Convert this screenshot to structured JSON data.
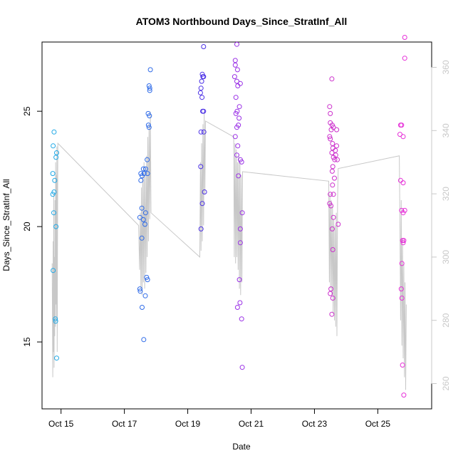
{
  "chart_data": {
    "type": "scatter",
    "title": "ATOM3 Northbound Days_Since_StratInf_All",
    "xlabel": "Date",
    "ylabel": "Days_Since_StratInf_All",
    "x_unit": "days (Oct 1 = 1)",
    "xlim": [
      14.4,
      26.7
    ],
    "ylim": [
      12.1,
      28.0
    ],
    "y_ticks": [
      15,
      20,
      25
    ],
    "x_ticks": [
      {
        "value": 15,
        "label": "Oct 15"
      },
      {
        "value": 17,
        "label": "Oct 17"
      },
      {
        "value": 19,
        "label": "Oct 19"
      },
      {
        "value": 21,
        "label": "Oct 21"
      },
      {
        "value": 23,
        "label": "Oct 23"
      },
      {
        "value": 25,
        "label": "Oct 25"
      }
    ],
    "right_axis": {
      "label": "",
      "ylim": [
        252,
        368
      ],
      "ticks": [
        260,
        280,
        300,
        320,
        340,
        360
      ],
      "color": "#c8c8c8"
    },
    "colors": {
      "flight1": "#1fa8e6",
      "flight2": "#2f6be8",
      "flight3": "#4b30e6",
      "flight4": "#9a30e6",
      "flight5": "#cc30cc",
      "flight6": "#e630d8",
      "line": "#c8c8c8"
    },
    "series": [
      {
        "name": "flight1",
        "color_key": "flight1",
        "points": [
          [
            14.78,
            24.1
          ],
          [
            14.75,
            23.5
          ],
          [
            14.86,
            23.2
          ],
          [
            14.84,
            23.0
          ],
          [
            14.74,
            22.3
          ],
          [
            14.8,
            22.0
          ],
          [
            14.78,
            21.5
          ],
          [
            14.74,
            21.4
          ],
          [
            14.77,
            20.6
          ],
          [
            14.84,
            20.0
          ],
          [
            14.75,
            18.1
          ],
          [
            14.82,
            16.0
          ],
          [
            14.83,
            15.9
          ],
          [
            14.86,
            14.3
          ]
        ]
      },
      {
        "name": "flight2",
        "color_key": "flight2",
        "points": [
          [
            17.82,
            26.8
          ],
          [
            17.78,
            26.1
          ],
          [
            17.8,
            26.0
          ],
          [
            17.8,
            25.9
          ],
          [
            17.75,
            24.9
          ],
          [
            17.79,
            24.8
          ],
          [
            17.76,
            24.4
          ],
          [
            17.78,
            24.3
          ],
          [
            17.72,
            22.9
          ],
          [
            17.67,
            22.5
          ],
          [
            17.6,
            22.5
          ],
          [
            17.52,
            22.3
          ],
          [
            17.62,
            22.3
          ],
          [
            17.73,
            22.3
          ],
          [
            17.56,
            22.2
          ],
          [
            17.52,
            22.0
          ],
          [
            17.55,
            20.8
          ],
          [
            17.67,
            20.6
          ],
          [
            17.49,
            20.4
          ],
          [
            17.6,
            20.3
          ],
          [
            17.65,
            20.1
          ],
          [
            17.55,
            19.5
          ],
          [
            17.7,
            17.8
          ],
          [
            17.73,
            17.7
          ],
          [
            17.49,
            17.3
          ],
          [
            17.5,
            17.2
          ],
          [
            17.66,
            17.0
          ],
          [
            17.56,
            16.5
          ],
          [
            17.61,
            15.1
          ]
        ]
      },
      {
        "name": "flight3",
        "color_key": "flight3",
        "points": [
          [
            19.5,
            27.8
          ],
          [
            19.46,
            26.6
          ],
          [
            19.5,
            26.5
          ],
          [
            19.48,
            26.5
          ],
          [
            19.44,
            26.3
          ],
          [
            19.42,
            26.0
          ],
          [
            19.45,
            25.6
          ],
          [
            19.4,
            25.8
          ],
          [
            19.47,
            25.0
          ],
          [
            19.5,
            25.0
          ],
          [
            19.42,
            24.1
          ],
          [
            19.51,
            24.1
          ],
          [
            19.41,
            22.6
          ],
          [
            19.53,
            21.5
          ],
          [
            19.46,
            21.0
          ],
          [
            19.42,
            19.9
          ]
        ]
      },
      {
        "name": "flight4",
        "color_key": "flight4",
        "points": [
          [
            20.55,
            27.9
          ],
          [
            20.5,
            27.2
          ],
          [
            20.5,
            27.0
          ],
          [
            20.57,
            26.8
          ],
          [
            20.48,
            26.5
          ],
          [
            20.55,
            26.3
          ],
          [
            20.66,
            26.2
          ],
          [
            20.58,
            26.1
          ],
          [
            20.52,
            25.6
          ],
          [
            20.63,
            25.2
          ],
          [
            20.56,
            25.0
          ],
          [
            20.52,
            24.9
          ],
          [
            20.62,
            24.7
          ],
          [
            20.6,
            24.4
          ],
          [
            20.55,
            24.3
          ],
          [
            20.5,
            23.9
          ],
          [
            20.58,
            23.5
          ],
          [
            20.55,
            23.1
          ],
          [
            20.66,
            22.9
          ],
          [
            20.7,
            22.8
          ],
          [
            20.6,
            22.2
          ],
          [
            20.72,
            20.6
          ],
          [
            20.66,
            19.9
          ],
          [
            20.66,
            19.3
          ],
          [
            20.63,
            17.7
          ],
          [
            20.65,
            16.7
          ],
          [
            20.57,
            16.5
          ],
          [
            20.7,
            16.0
          ],
          [
            20.72,
            13.9
          ]
        ]
      },
      {
        "name": "flight5",
        "color_key": "flight5",
        "points": [
          [
            23.55,
            26.4
          ],
          [
            23.48,
            25.2
          ],
          [
            23.5,
            24.9
          ],
          [
            23.5,
            24.5
          ],
          [
            23.56,
            24.4
          ],
          [
            23.6,
            24.3
          ],
          [
            23.53,
            24.2
          ],
          [
            23.7,
            24.2
          ],
          [
            23.48,
            23.9
          ],
          [
            23.5,
            23.8
          ],
          [
            23.57,
            23.6
          ],
          [
            23.7,
            23.5
          ],
          [
            23.58,
            23.4
          ],
          [
            23.66,
            23.3
          ],
          [
            23.55,
            23.2
          ],
          [
            23.67,
            23.1
          ],
          [
            23.6,
            23.0
          ],
          [
            23.72,
            22.9
          ],
          [
            23.64,
            22.9
          ],
          [
            23.58,
            22.6
          ],
          [
            23.56,
            22.4
          ],
          [
            23.63,
            22.1
          ],
          [
            23.57,
            21.8
          ],
          [
            23.5,
            21.4
          ],
          [
            23.6,
            21.4
          ],
          [
            23.48,
            21.0
          ],
          [
            23.52,
            20.9
          ],
          [
            23.6,
            20.4
          ],
          [
            23.75,
            20.1
          ],
          [
            23.56,
            19.9
          ],
          [
            23.58,
            19.0
          ],
          [
            23.52,
            17.3
          ],
          [
            23.5,
            17.1
          ],
          [
            23.58,
            16.9
          ],
          [
            23.55,
            16.2
          ]
        ]
      },
      {
        "name": "flight6",
        "color_key": "flight6",
        "points": [
          [
            25.85,
            28.2
          ],
          [
            25.85,
            27.3
          ],
          [
            25.72,
            24.4
          ],
          [
            25.75,
            24.4
          ],
          [
            25.7,
            24.0
          ],
          [
            25.8,
            23.9
          ],
          [
            25.72,
            22.0
          ],
          [
            25.8,
            21.9
          ],
          [
            25.75,
            20.7
          ],
          [
            25.85,
            20.7
          ],
          [
            25.8,
            20.6
          ],
          [
            25.78,
            19.4
          ],
          [
            25.82,
            19.4
          ],
          [
            25.8,
            19.3
          ],
          [
            25.76,
            18.4
          ],
          [
            25.74,
            17.3
          ],
          [
            25.76,
            16.9
          ],
          [
            25.78,
            14.0
          ],
          [
            25.82,
            12.7
          ]
        ]
      }
    ],
    "line_series": {
      "name": "right-axis-trace",
      "axis": "right",
      "points": [
        [
          14.72,
          298
        ],
        [
          14.74,
          262
        ],
        [
          14.75,
          305
        ],
        [
          14.76,
          270
        ],
        [
          14.77,
          320
        ],
        [
          14.78,
          265
        ],
        [
          14.79,
          300
        ],
        [
          14.8,
          275
        ],
        [
          14.81,
          318
        ],
        [
          14.82,
          278
        ],
        [
          14.83,
          330
        ],
        [
          14.84,
          285
        ],
        [
          14.85,
          326
        ],
        [
          14.86,
          280
        ],
        [
          14.87,
          335
        ],
        [
          14.88,
          270
        ],
        [
          14.9,
          336
        ],
        [
          17.45,
          310
        ],
        [
          17.48,
          296
        ],
        [
          17.5,
          314
        ],
        [
          17.52,
          290
        ],
        [
          17.54,
          322
        ],
        [
          17.56,
          288
        ],
        [
          17.58,
          326
        ],
        [
          17.6,
          292
        ],
        [
          17.62,
          330
        ],
        [
          17.64,
          290
        ],
        [
          17.66,
          328
        ],
        [
          17.68,
          295
        ],
        [
          17.7,
          332
        ],
        [
          17.72,
          300
        ],
        [
          17.74,
          338
        ],
        [
          17.76,
          305
        ],
        [
          17.78,
          342
        ],
        [
          17.8,
          312
        ],
        [
          17.82,
          346
        ],
        [
          17.84,
          314
        ],
        [
          19.38,
          300
        ],
        [
          19.4,
          330
        ],
        [
          19.42,
          302
        ],
        [
          19.44,
          336
        ],
        [
          19.46,
          305
        ],
        [
          19.48,
          342
        ],
        [
          19.5,
          310
        ],
        [
          19.52,
          346
        ],
        [
          19.54,
          320
        ],
        [
          19.56,
          343
        ],
        [
          20.45,
          338
        ],
        [
          20.47,
          300
        ],
        [
          20.49,
          336
        ],
        [
          20.51,
          298
        ],
        [
          20.53,
          334
        ],
        [
          20.55,
          300
        ],
        [
          20.57,
          330
        ],
        [
          20.59,
          296
        ],
        [
          20.61,
          332
        ],
        [
          20.63,
          290
        ],
        [
          20.65,
          330
        ],
        [
          20.67,
          288
        ],
        [
          20.69,
          326
        ],
        [
          20.71,
          292
        ],
        [
          20.73,
          327
        ],
        [
          23.45,
          324
        ],
        [
          23.47,
          292
        ],
        [
          23.49,
          320
        ],
        [
          23.51,
          290
        ],
        [
          23.53,
          318
        ],
        [
          23.55,
          288
        ],
        [
          23.57,
          316
        ],
        [
          23.59,
          282
        ],
        [
          23.61,
          312
        ],
        [
          23.63,
          280
        ],
        [
          23.65,
          310
        ],
        [
          23.67,
          278
        ],
        [
          23.69,
          314
        ],
        [
          23.71,
          275
        ],
        [
          23.73,
          318
        ],
        [
          23.75,
          328
        ],
        [
          25.68,
          332
        ],
        [
          25.7,
          310
        ],
        [
          25.72,
          280
        ],
        [
          25.74,
          318
        ],
        [
          25.76,
          272
        ],
        [
          25.78,
          306
        ],
        [
          25.8,
          268
        ],
        [
          25.82,
          298
        ],
        [
          25.84,
          262
        ],
        [
          25.86,
          292
        ],
        [
          25.88,
          258
        ],
        [
          25.9,
          285
        ]
      ]
    }
  }
}
